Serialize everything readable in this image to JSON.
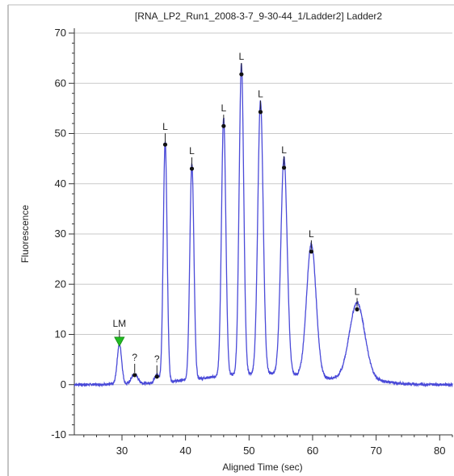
{
  "chart_data": {
    "type": "line",
    "title": "[RNA_LP2_Run1_2008-3-7_9-30-44_1/Ladder2]   Ladder2",
    "xlabel": "Aligned Time (sec)",
    "ylabel": "Fluorescence",
    "xlim": [
      22.5,
      82
    ],
    "ylim": [
      -10,
      70
    ],
    "x_ticks": [
      30,
      40,
      50,
      60,
      70,
      80
    ],
    "y_ticks": [
      -10,
      0,
      10,
      20,
      30,
      40,
      50,
      60,
      70
    ],
    "grid": "horizontal",
    "line_color": "#4a4ad8",
    "marker_color": "#22bb22",
    "baseline": 0,
    "peaks": [
      {
        "x": 29.6,
        "y": 8.0,
        "width": 0.35,
        "label": "LM",
        "marker": "triangle"
      },
      {
        "x": 32.0,
        "y": 1.9,
        "width": 0.5,
        "label": "?",
        "marker": "dot"
      },
      {
        "x": 35.5,
        "y": 1.6,
        "width": 0.35,
        "label": "?",
        "marker": "dot"
      },
      {
        "x": 36.8,
        "y": 47.8,
        "width": 0.3,
        "label": "L",
        "marker": "dot"
      },
      {
        "x": 41.0,
        "y": 43.0,
        "width": 0.32,
        "label": "L",
        "marker": "dot"
      },
      {
        "x": 46.0,
        "y": 51.5,
        "width": 0.34,
        "label": "L",
        "marker": "dot"
      },
      {
        "x": 48.8,
        "y": 61.8,
        "width": 0.36,
        "label": "L",
        "marker": "dot"
      },
      {
        "x": 51.8,
        "y": 54.3,
        "width": 0.42,
        "label": "L",
        "marker": "dot"
      },
      {
        "x": 55.5,
        "y": 43.2,
        "width": 0.5,
        "label": "L",
        "marker": "dot"
      },
      {
        "x": 59.8,
        "y": 26.5,
        "width": 0.75,
        "label": "L",
        "marker": "dot"
      },
      {
        "x": 67.0,
        "y": 15.0,
        "width": 1.2,
        "label": "L",
        "marker": "dot"
      }
    ]
  }
}
